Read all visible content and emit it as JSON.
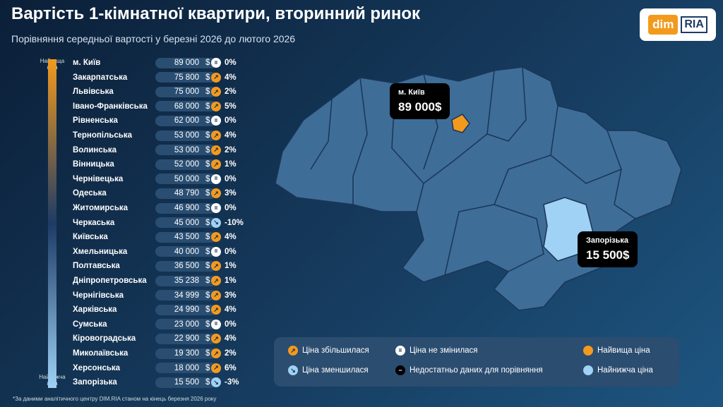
{
  "header": {
    "title": "Вартість 1-кімнатної квартири, вторинний ринок",
    "subtitle": "Порівняння середньої вартості у березні 2026 до лютого 2026",
    "logo": [
      "dim",
      "RIA"
    ]
  },
  "scale": {
    "top": "Найвища ціна",
    "bottom": "Найнижча ціна"
  },
  "table": {
    "currency": "$",
    "rows": [
      [
        "м. Київ",
        "89 000",
        "0%",
        "same"
      ],
      [
        "Закарпатська",
        "75 800",
        "4%",
        "up"
      ],
      [
        "Львівська",
        "75 000",
        "2%",
        "up"
      ],
      [
        "Івано-Франківська",
        "68 000",
        "5%",
        "up"
      ],
      [
        "Рівненська",
        "62 000",
        "0%",
        "same"
      ],
      [
        "Тернопільська",
        "53 000",
        "4%",
        "up"
      ],
      [
        "Волинська",
        "53 000",
        "2%",
        "up"
      ],
      [
        "Вінницька",
        "52 000",
        "1%",
        "up"
      ],
      [
        "Чернівецька",
        "50 000",
        "0%",
        "same"
      ],
      [
        "Одеська",
        "48 790",
        "3%",
        "up"
      ],
      [
        "Житомирська",
        "46 900",
        "0%",
        "same"
      ],
      [
        "Черкаська",
        "45 000",
        "-10%",
        "down"
      ],
      [
        "Київська",
        "43 500",
        "4%",
        "up"
      ],
      [
        "Хмельницька",
        "40 000",
        "0%",
        "same"
      ],
      [
        "Полтавська",
        "36 500",
        "1%",
        "up"
      ],
      [
        "Дніпропетровська",
        "35 238",
        "1%",
        "up"
      ],
      [
        "Чернігівська",
        "34 999",
        "3%",
        "up"
      ],
      [
        "Харківська",
        "24 990",
        "4%",
        "up"
      ],
      [
        "Сумська",
        "23 000",
        "0%",
        "same"
      ],
      [
        "Кіровоградська",
        "22 900",
        "4%",
        "up"
      ],
      [
        "Миколаївська",
        "19 300",
        "2%",
        "up"
      ],
      [
        "Херсонська",
        "18 000",
        "6%",
        "up"
      ],
      [
        "Запорізька",
        "15 500",
        "-3%",
        "down"
      ]
    ]
  },
  "callouts": [
    {
      "name": "м. Київ",
      "price": "89 000$"
    },
    {
      "name": "Запорізька",
      "price": "15 500$"
    }
  ],
  "legend": [
    {
      "label": "Ціна збільшилася",
      "icon": "up"
    },
    {
      "label": "Ціна не змінилася",
      "icon": "same"
    },
    {
      "label": "Найвища ціна",
      "icon": "high"
    },
    {
      "label": "Ціна зменшилася",
      "icon": "down"
    },
    {
      "label": "Недостатньо даних для порівняння",
      "icon": "none"
    },
    {
      "label": "Найнижча ціна",
      "icon": "low"
    }
  ],
  "footnote": "*За даними аналітичного центру DIM.RIA станом на кінець березня 2026 року"
}
